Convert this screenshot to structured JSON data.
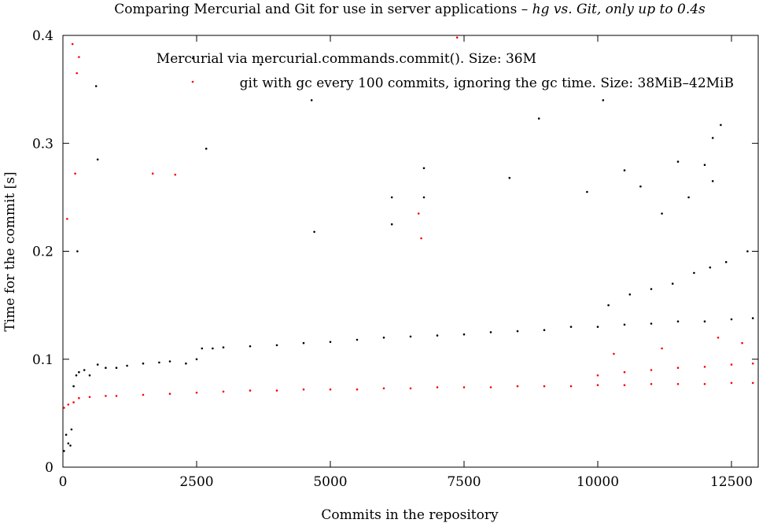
{
  "chart_data": {
    "type": "scatter",
    "title": "Comparing Mercurial and Git for use in server applications –",
    "subtitle": "hg vs. Git, only up to 0.4s",
    "xlabel": "Commits in the repository",
    "ylabel": "Time for the commit [s]",
    "xlim": [
      0,
      13000
    ],
    "ylim": [
      0,
      0.4
    ],
    "xticks": [
      0,
      2500,
      5000,
      7500,
      10000,
      12500
    ],
    "yticks": [
      0,
      0.1,
      0.2,
      0.3,
      0.4
    ],
    "grid": false,
    "legend_position": "top-right",
    "series": [
      {
        "name": "Mercurial via mercurial.commands.commit(). Size: 36M",
        "color": "#000000",
        "marker": "dot",
        "points": [
          [
            20,
            0.015
          ],
          [
            60,
            0.03
          ],
          [
            100,
            0.022
          ],
          [
            140,
            0.02
          ],
          [
            160,
            0.035
          ],
          [
            200,
            0.075
          ],
          [
            250,
            0.085
          ],
          [
            300,
            0.088
          ],
          [
            400,
            0.09
          ],
          [
            500,
            0.085
          ],
          [
            650,
            0.095
          ],
          [
            800,
            0.092
          ],
          [
            1000,
            0.092
          ],
          [
            1200,
            0.094
          ],
          [
            1500,
            0.096
          ],
          [
            1800,
            0.097
          ],
          [
            2000,
            0.098
          ],
          [
            2300,
            0.096
          ],
          [
            2500,
            0.1
          ],
          [
            2600,
            0.11
          ],
          [
            2800,
            0.11
          ],
          [
            3000,
            0.111
          ],
          [
            3500,
            0.112
          ],
          [
            4000,
            0.113
          ],
          [
            4500,
            0.115
          ],
          [
            5000,
            0.116
          ],
          [
            5500,
            0.118
          ],
          [
            6000,
            0.12
          ],
          [
            6500,
            0.121
          ],
          [
            7000,
            0.122
          ],
          [
            7500,
            0.123
          ],
          [
            8000,
            0.125
          ],
          [
            8500,
            0.126
          ],
          [
            9000,
            0.127
          ],
          [
            9500,
            0.13
          ],
          [
            10000,
            0.13
          ],
          [
            10500,
            0.132
          ],
          [
            11000,
            0.133
          ],
          [
            11500,
            0.135
          ],
          [
            12000,
            0.135
          ],
          [
            12500,
            0.137
          ],
          [
            12900,
            0.138
          ],
          [
            10200,
            0.15
          ],
          [
            10600,
            0.16
          ],
          [
            11000,
            0.165
          ],
          [
            11400,
            0.17
          ],
          [
            11800,
            0.18
          ],
          [
            12100,
            0.185
          ],
          [
            12400,
            0.19
          ],
          [
            12800,
            0.2
          ],
          [
            650,
            0.285
          ],
          [
            620,
            0.353
          ],
          [
            270,
            0.2
          ],
          [
            2680,
            0.295
          ],
          [
            3700,
            0.373
          ],
          [
            4650,
            0.34
          ],
          [
            4700,
            0.218
          ],
          [
            6150,
            0.25
          ],
          [
            6150,
            0.225
          ],
          [
            6750,
            0.277
          ],
          [
            6750,
            0.25
          ],
          [
            8350,
            0.268
          ],
          [
            8900,
            0.323
          ],
          [
            10100,
            0.34
          ],
          [
            10500,
            0.275
          ],
          [
            11500,
            0.283
          ],
          [
            12150,
            0.305
          ],
          [
            12300,
            0.317
          ],
          [
            12150,
            0.265
          ],
          [
            12000,
            0.28
          ],
          [
            9800,
            0.255
          ],
          [
            10800,
            0.26
          ],
          [
            11200,
            0.235
          ],
          [
            11700,
            0.25
          ]
        ]
      },
      {
        "name": "git with gc every 100 commits, ignoring the gc time. Size: 38MiB–42MiB",
        "color": "#ff0000",
        "marker": "dot",
        "points": [
          [
            20,
            0.055
          ],
          [
            100,
            0.058
          ],
          [
            200,
            0.06
          ],
          [
            300,
            0.064
          ],
          [
            500,
            0.065
          ],
          [
            800,
            0.066
          ],
          [
            1000,
            0.066
          ],
          [
            1500,
            0.067
          ],
          [
            2000,
            0.068
          ],
          [
            2500,
            0.069
          ],
          [
            3000,
            0.07
          ],
          [
            3500,
            0.071
          ],
          [
            4000,
            0.071
          ],
          [
            4500,
            0.072
          ],
          [
            5000,
            0.072
          ],
          [
            5500,
            0.072
          ],
          [
            6000,
            0.073
          ],
          [
            6500,
            0.073
          ],
          [
            7000,
            0.074
          ],
          [
            7500,
            0.074
          ],
          [
            8000,
            0.074
          ],
          [
            8500,
            0.075
          ],
          [
            9000,
            0.075
          ],
          [
            9500,
            0.075
          ],
          [
            10000,
            0.076
          ],
          [
            10500,
            0.076
          ],
          [
            11000,
            0.077
          ],
          [
            11500,
            0.077
          ],
          [
            12000,
            0.077
          ],
          [
            12500,
            0.078
          ],
          [
            12900,
            0.078
          ],
          [
            10000,
            0.085
          ],
          [
            10500,
            0.088
          ],
          [
            11000,
            0.09
          ],
          [
            11500,
            0.092
          ],
          [
            12000,
            0.093
          ],
          [
            12500,
            0.095
          ],
          [
            12900,
            0.096
          ],
          [
            180,
            0.392
          ],
          [
            300,
            0.38
          ],
          [
            260,
            0.365
          ],
          [
            230,
            0.272
          ],
          [
            1680,
            0.272
          ],
          [
            2100,
            0.271
          ],
          [
            80,
            0.23
          ],
          [
            7370,
            0.398
          ],
          [
            6650,
            0.235
          ],
          [
            6700,
            0.212
          ],
          [
            12250,
            0.12
          ],
          [
            12700,
            0.115
          ],
          [
            11200,
            0.11
          ],
          [
            10300,
            0.105
          ]
        ]
      }
    ]
  }
}
